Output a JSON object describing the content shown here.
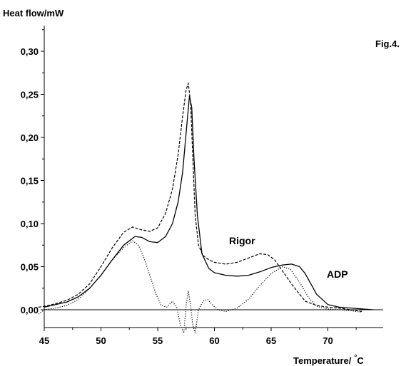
{
  "chart_data": {
    "type": "line",
    "ylabel": "Heat flow/mW",
    "xlabel": "Temperature/ °C",
    "xlabel_prefix": "Temperature/",
    "xlabel_degree": "°",
    "xlabel_unit": "C",
    "figure_label": "Fig.4.",
    "xlim": [
      45,
      74.5
    ],
    "ylim": [
      -0.02,
      0.33
    ],
    "x_ticks": [
      45,
      50,
      55,
      60,
      65,
      70
    ],
    "x_tick_labels": [
      "45",
      "50",
      "55",
      "60",
      "65",
      "70"
    ],
    "y_ticks": [
      0.0,
      0.05,
      0.1,
      0.15,
      0.2,
      0.25,
      0.3
    ],
    "y_tick_labels": [
      "0,00",
      "0,05",
      "0,10",
      "0,15",
      "0,20",
      "0,25",
      "0,30"
    ],
    "annotations": [
      {
        "text": "Rigor",
        "x": 61.3,
        "y": 0.078
      },
      {
        "text": "ADP",
        "x": 69.0,
        "y": 0.042
      }
    ],
    "series": [
      {
        "style": "dashed",
        "x": [
          44.5,
          45,
          46,
          47,
          48,
          49,
          50,
          51,
          52,
          52.8,
          53.5,
          54.3,
          55,
          55.7,
          56.3,
          56.8,
          57.2,
          57.5,
          57.7,
          57.9,
          58.1,
          58.3,
          58.6,
          59,
          59.5,
          60,
          61,
          62,
          63,
          64,
          64.7,
          65.3,
          66,
          66.8,
          67.5,
          68,
          69,
          70,
          71,
          72,
          73
        ],
        "y": [
          0.003,
          0.004,
          0.007,
          0.011,
          0.018,
          0.03,
          0.05,
          0.072,
          0.09,
          0.096,
          0.093,
          0.091,
          0.095,
          0.112,
          0.14,
          0.18,
          0.225,
          0.255,
          0.263,
          0.24,
          0.175,
          0.11,
          0.075,
          0.063,
          0.058,
          0.055,
          0.053,
          0.055,
          0.06,
          0.065,
          0.064,
          0.058,
          0.045,
          0.03,
          0.018,
          0.01,
          0.005,
          0.003,
          0.002,
          0.0,
          -0.002
        ]
      },
      {
        "style": "solid",
        "x": [
          45,
          46,
          47,
          48,
          49,
          50,
          51,
          52,
          53,
          53.6,
          54.3,
          55,
          55.7,
          56.3,
          56.8,
          57.2,
          57.5,
          57.8,
          58.0,
          58.2,
          58.5,
          58.9,
          59.5,
          60,
          61,
          62,
          63,
          64,
          65,
          66,
          66.8,
          67.5,
          68,
          68.5,
          69,
          70,
          71,
          72,
          73,
          74
        ],
        "y": [
          0.003,
          0.006,
          0.009,
          0.015,
          0.025,
          0.04,
          0.058,
          0.075,
          0.085,
          0.084,
          0.079,
          0.078,
          0.085,
          0.1,
          0.125,
          0.16,
          0.205,
          0.248,
          0.235,
          0.175,
          0.11,
          0.065,
          0.048,
          0.043,
          0.04,
          0.039,
          0.04,
          0.044,
          0.049,
          0.052,
          0.053,
          0.05,
          0.042,
          0.03,
          0.018,
          0.006,
          0.003,
          0.002,
          0.001,
          0.0
        ]
      },
      {
        "style": "dotted",
        "x": [
          44.5,
          45,
          46,
          47,
          48,
          49,
          50,
          51,
          52,
          52.8,
          53.3,
          53.8,
          54.3,
          54.8,
          55.3,
          55.8,
          56.3,
          56.7,
          57.0,
          57.3,
          57.5,
          57.7,
          57.9,
          58.1,
          58.3,
          58.6,
          59,
          59.4,
          59.8,
          60.3,
          61,
          62,
          63,
          64,
          65,
          66,
          66.7,
          67.5,
          68.3,
          69,
          70,
          71,
          72,
          73
        ],
        "y": [
          -0.005,
          0.0,
          0.002,
          0.005,
          0.012,
          0.025,
          0.04,
          0.058,
          0.072,
          0.08,
          0.075,
          0.06,
          0.04,
          0.02,
          0.005,
          0.003,
          0.01,
          0.002,
          -0.018,
          -0.027,
          0.005,
          0.022,
          0.005,
          -0.018,
          -0.027,
          0.0,
          0.01,
          0.012,
          0.006,
          0.0,
          -0.002,
          0.002,
          0.012,
          0.028,
          0.042,
          0.05,
          0.047,
          0.032,
          0.014,
          0.004,
          0.001,
          0.0,
          -0.001,
          -0.003
        ]
      }
    ]
  }
}
